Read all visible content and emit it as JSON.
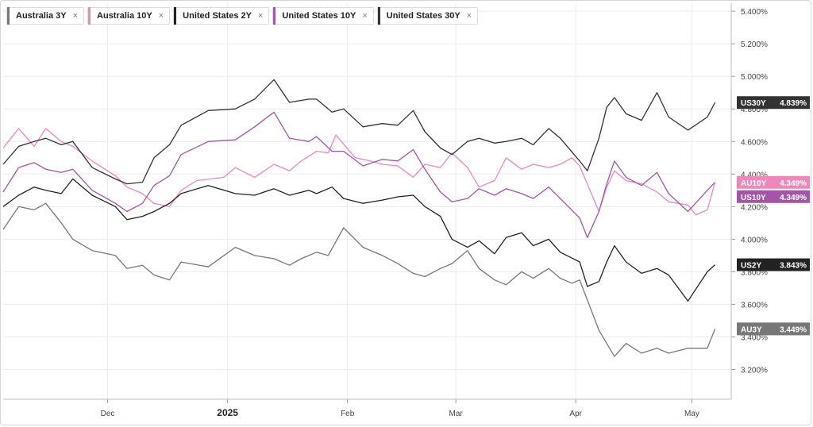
{
  "chart_data": {
    "type": "line",
    "x_ticks": [
      "Dec",
      "2025",
      "Feb",
      "Mar",
      "Apr",
      "May"
    ],
    "y_ticks": [
      "3.200%",
      "3.400%",
      "3.600%",
      "3.800%",
      "4.000%",
      "4.200%",
      "4.400%",
      "4.600%",
      "4.800%",
      "5.000%",
      "5.200%",
      "5.400%"
    ],
    "ylim": [
      3.1,
      5.43
    ],
    "x_range": [
      "2024-11-04",
      "2025-05-12"
    ],
    "grid": true,
    "legend_position": "top-left",
    "series": [
      {
        "name": "Australia 3Y",
        "tag": "AU3Y",
        "last_label": "3.449%",
        "last_value": 3.449,
        "color": "#777777",
        "points": [
          [
            "2024-11-04",
            4.06
          ],
          [
            "2024-11-08",
            4.2
          ],
          [
            "2024-11-12",
            4.18
          ],
          [
            "2024-11-15",
            4.22
          ],
          [
            "2024-11-19",
            4.1
          ],
          [
            "2024-11-22",
            4.0
          ],
          [
            "2024-11-27",
            3.93
          ],
          [
            "2024-12-03",
            3.9
          ],
          [
            "2024-12-06",
            3.82
          ],
          [
            "2024-12-10",
            3.84
          ],
          [
            "2024-12-13",
            3.78
          ],
          [
            "2024-12-17",
            3.75
          ],
          [
            "2024-12-20",
            3.86
          ],
          [
            "2024-12-27",
            3.83
          ],
          [
            "2025-01-03",
            3.95
          ],
          [
            "2025-01-08",
            3.9
          ],
          [
            "2025-01-13",
            3.88
          ],
          [
            "2025-01-17",
            3.84
          ],
          [
            "2025-01-20",
            3.88
          ],
          [
            "2025-01-24",
            3.92
          ],
          [
            "2025-01-27",
            3.9
          ],
          [
            "2025-01-31",
            4.07
          ],
          [
            "2025-02-05",
            3.95
          ],
          [
            "2025-02-10",
            3.9
          ],
          [
            "2025-02-14",
            3.85
          ],
          [
            "2025-02-18",
            3.79
          ],
          [
            "2025-02-21",
            3.77
          ],
          [
            "2025-02-25",
            3.82
          ],
          [
            "2025-02-28",
            3.85
          ],
          [
            "2025-03-04",
            3.93
          ],
          [
            "2025-03-07",
            3.82
          ],
          [
            "2025-03-11",
            3.75
          ],
          [
            "2025-03-14",
            3.72
          ],
          [
            "2025-03-18",
            3.8
          ],
          [
            "2025-03-21",
            3.76
          ],
          [
            "2025-03-25",
            3.82
          ],
          [
            "2025-03-28",
            3.76
          ],
          [
            "2025-03-31",
            3.73
          ],
          [
            "2025-04-02",
            3.75
          ],
          [
            "2025-04-07",
            3.44
          ],
          [
            "2025-04-11",
            3.28
          ],
          [
            "2025-04-14",
            3.36
          ],
          [
            "2025-04-18",
            3.3
          ],
          [
            "2025-04-22",
            3.33
          ],
          [
            "2025-04-25",
            3.3
          ],
          [
            "2025-04-30",
            3.33
          ],
          [
            "2025-05-05",
            3.33
          ],
          [
            "2025-05-07",
            3.449
          ]
        ]
      },
      {
        "name": "Australia 10Y",
        "tag": "AU10Y",
        "last_label": "4.349%",
        "last_value": 4.349,
        "color": "#ee88bb",
        "points": [
          [
            "2024-11-04",
            4.56
          ],
          [
            "2024-11-06",
            4.62
          ],
          [
            "2024-11-08",
            4.68
          ],
          [
            "2024-11-12",
            4.57
          ],
          [
            "2024-11-15",
            4.68
          ],
          [
            "2024-11-19",
            4.6
          ],
          [
            "2024-11-22",
            4.57
          ],
          [
            "2024-11-27",
            4.48
          ],
          [
            "2024-12-03",
            4.39
          ],
          [
            "2024-12-06",
            4.32
          ],
          [
            "2024-12-10",
            4.28
          ],
          [
            "2024-12-13",
            4.22
          ],
          [
            "2024-12-17",
            4.2
          ],
          [
            "2024-12-20",
            4.3
          ],
          [
            "2024-12-24",
            4.36
          ],
          [
            "2024-12-31",
            4.38
          ],
          [
            "2025-01-03",
            4.44
          ],
          [
            "2025-01-08",
            4.38
          ],
          [
            "2025-01-13",
            4.46
          ],
          [
            "2025-01-17",
            4.42
          ],
          [
            "2025-01-20",
            4.48
          ],
          [
            "2025-01-24",
            4.54
          ],
          [
            "2025-01-27",
            4.53
          ],
          [
            "2025-01-29",
            4.64
          ],
          [
            "2025-02-03",
            4.5
          ],
          [
            "2025-02-07",
            4.48
          ],
          [
            "2025-02-10",
            4.46
          ],
          [
            "2025-02-14",
            4.45
          ],
          [
            "2025-02-18",
            4.38
          ],
          [
            "2025-02-21",
            4.46
          ],
          [
            "2025-02-25",
            4.44
          ],
          [
            "2025-02-28",
            4.53
          ],
          [
            "2025-03-04",
            4.44
          ],
          [
            "2025-03-07",
            4.32
          ],
          [
            "2025-03-11",
            4.36
          ],
          [
            "2025-03-14",
            4.5
          ],
          [
            "2025-03-18",
            4.43
          ],
          [
            "2025-03-21",
            4.46
          ],
          [
            "2025-03-25",
            4.44
          ],
          [
            "2025-03-28",
            4.46
          ],
          [
            "2025-03-31",
            4.5
          ],
          [
            "2025-04-02",
            4.45
          ],
          [
            "2025-04-07",
            4.17
          ],
          [
            "2025-04-09",
            4.32
          ],
          [
            "2025-04-11",
            4.42
          ],
          [
            "2025-04-14",
            4.36
          ],
          [
            "2025-04-18",
            4.34
          ],
          [
            "2025-04-22",
            4.29
          ],
          [
            "2025-04-25",
            4.23
          ],
          [
            "2025-04-30",
            4.21
          ],
          [
            "2025-05-02",
            4.15
          ],
          [
            "2025-05-05",
            4.18
          ],
          [
            "2025-05-07",
            4.349
          ]
        ]
      },
      {
        "name": "United States 2Y",
        "tag": "US2Y",
        "last_label": "3.843%",
        "last_value": 3.843,
        "color": "#222222",
        "points": [
          [
            "2024-11-04",
            4.2
          ],
          [
            "2024-11-08",
            4.27
          ],
          [
            "2024-11-12",
            4.32
          ],
          [
            "2024-11-15",
            4.3
          ],
          [
            "2024-11-19",
            4.28
          ],
          [
            "2024-11-22",
            4.37
          ],
          [
            "2024-11-27",
            4.27
          ],
          [
            "2024-12-03",
            4.2
          ],
          [
            "2024-12-06",
            4.12
          ],
          [
            "2024-12-10",
            4.14
          ],
          [
            "2024-12-13",
            4.17
          ],
          [
            "2024-12-17",
            4.22
          ],
          [
            "2024-12-20",
            4.28
          ],
          [
            "2024-12-27",
            4.33
          ],
          [
            "2025-01-03",
            4.28
          ],
          [
            "2025-01-08",
            4.27
          ],
          [
            "2025-01-13",
            4.31
          ],
          [
            "2025-01-17",
            4.27
          ],
          [
            "2025-01-22",
            4.3
          ],
          [
            "2025-01-24",
            4.28
          ],
          [
            "2025-01-28",
            4.32
          ],
          [
            "2025-01-31",
            4.25
          ],
          [
            "2025-02-05",
            4.22
          ],
          [
            "2025-02-10",
            4.24
          ],
          [
            "2025-02-14",
            4.26
          ],
          [
            "2025-02-18",
            4.27
          ],
          [
            "2025-02-21",
            4.2
          ],
          [
            "2025-02-25",
            4.14
          ],
          [
            "2025-02-28",
            4.0
          ],
          [
            "2025-03-04",
            3.95
          ],
          [
            "2025-03-07",
            3.99
          ],
          [
            "2025-03-11",
            3.91
          ],
          [
            "2025-03-14",
            4.01
          ],
          [
            "2025-03-18",
            4.04
          ],
          [
            "2025-03-21",
            3.96
          ],
          [
            "2025-03-25",
            4.0
          ],
          [
            "2025-03-28",
            3.92
          ],
          [
            "2025-04-02",
            3.86
          ],
          [
            "2025-04-04",
            3.71
          ],
          [
            "2025-04-07",
            3.74
          ],
          [
            "2025-04-09",
            3.86
          ],
          [
            "2025-04-11",
            3.96
          ],
          [
            "2025-04-14",
            3.86
          ],
          [
            "2025-04-18",
            3.79
          ],
          [
            "2025-04-22",
            3.82
          ],
          [
            "2025-04-25",
            3.78
          ],
          [
            "2025-04-30",
            3.62
          ],
          [
            "2025-05-05",
            3.8
          ],
          [
            "2025-05-07",
            3.843
          ]
        ]
      },
      {
        "name": "United States 10Y",
        "tag": "US10Y",
        "last_label": "4.349%",
        "last_value": 4.349,
        "color": "#a355a8",
        "points": [
          [
            "2024-11-04",
            4.29
          ],
          [
            "2024-11-08",
            4.44
          ],
          [
            "2024-11-12",
            4.47
          ],
          [
            "2024-11-15",
            4.43
          ],
          [
            "2024-11-19",
            4.41
          ],
          [
            "2024-11-22",
            4.43
          ],
          [
            "2024-11-27",
            4.3
          ],
          [
            "2024-12-03",
            4.22
          ],
          [
            "2024-12-06",
            4.17
          ],
          [
            "2024-12-10",
            4.22
          ],
          [
            "2024-12-13",
            4.33
          ],
          [
            "2024-12-17",
            4.39
          ],
          [
            "2024-12-20",
            4.52
          ],
          [
            "2024-12-27",
            4.6
          ],
          [
            "2025-01-03",
            4.61
          ],
          [
            "2025-01-08",
            4.69
          ],
          [
            "2025-01-13",
            4.78
          ],
          [
            "2025-01-17",
            4.62
          ],
          [
            "2025-01-22",
            4.6
          ],
          [
            "2025-01-24",
            4.63
          ],
          [
            "2025-01-28",
            4.54
          ],
          [
            "2025-01-31",
            4.54
          ],
          [
            "2025-02-05",
            4.45
          ],
          [
            "2025-02-10",
            4.49
          ],
          [
            "2025-02-14",
            4.48
          ],
          [
            "2025-02-18",
            4.55
          ],
          [
            "2025-02-21",
            4.43
          ],
          [
            "2025-02-25",
            4.29
          ],
          [
            "2025-02-28",
            4.23
          ],
          [
            "2025-03-04",
            4.25
          ],
          [
            "2025-03-07",
            4.31
          ],
          [
            "2025-03-11",
            4.27
          ],
          [
            "2025-03-14",
            4.31
          ],
          [
            "2025-03-18",
            4.28
          ],
          [
            "2025-03-21",
            4.25
          ],
          [
            "2025-03-25",
            4.32
          ],
          [
            "2025-03-28",
            4.25
          ],
          [
            "2025-04-02",
            4.13
          ],
          [
            "2025-04-04",
            4.01
          ],
          [
            "2025-04-07",
            4.17
          ],
          [
            "2025-04-09",
            4.34
          ],
          [
            "2025-04-11",
            4.48
          ],
          [
            "2025-04-14",
            4.38
          ],
          [
            "2025-04-18",
            4.33
          ],
          [
            "2025-04-22",
            4.41
          ],
          [
            "2025-04-25",
            4.28
          ],
          [
            "2025-04-30",
            4.17
          ],
          [
            "2025-05-05",
            4.3
          ],
          [
            "2025-05-07",
            4.349
          ]
        ]
      },
      {
        "name": "United States 30Y",
        "tag": "US30Y",
        "last_label": "4.839%",
        "last_value": 4.839,
        "color": "#333333",
        "points": [
          [
            "2024-11-04",
            4.46
          ],
          [
            "2024-11-08",
            4.57
          ],
          [
            "2024-11-12",
            4.6
          ],
          [
            "2024-11-15",
            4.62
          ],
          [
            "2024-11-19",
            4.58
          ],
          [
            "2024-11-22",
            4.6
          ],
          [
            "2024-11-27",
            4.44
          ],
          [
            "2024-12-03",
            4.37
          ],
          [
            "2024-12-06",
            4.34
          ],
          [
            "2024-12-10",
            4.35
          ],
          [
            "2024-12-13",
            4.5
          ],
          [
            "2024-12-17",
            4.58
          ],
          [
            "2024-12-20",
            4.7
          ],
          [
            "2024-12-27",
            4.79
          ],
          [
            "2025-01-03",
            4.8
          ],
          [
            "2025-01-08",
            4.86
          ],
          [
            "2025-01-13",
            4.98
          ],
          [
            "2025-01-17",
            4.84
          ],
          [
            "2025-01-22",
            4.86
          ],
          [
            "2025-01-24",
            4.86
          ],
          [
            "2025-01-28",
            4.78
          ],
          [
            "2025-01-31",
            4.8
          ],
          [
            "2025-02-05",
            4.69
          ],
          [
            "2025-02-10",
            4.71
          ],
          [
            "2025-02-14",
            4.7
          ],
          [
            "2025-02-18",
            4.79
          ],
          [
            "2025-02-21",
            4.66
          ],
          [
            "2025-02-25",
            4.56
          ],
          [
            "2025-02-28",
            4.52
          ],
          [
            "2025-03-04",
            4.6
          ],
          [
            "2025-03-07",
            4.62
          ],
          [
            "2025-03-11",
            4.59
          ],
          [
            "2025-03-14",
            4.6
          ],
          [
            "2025-03-18",
            4.62
          ],
          [
            "2025-03-21",
            4.58
          ],
          [
            "2025-03-25",
            4.68
          ],
          [
            "2025-03-28",
            4.62
          ],
          [
            "2025-04-02",
            4.48
          ],
          [
            "2025-04-04",
            4.42
          ],
          [
            "2025-04-07",
            4.62
          ],
          [
            "2025-04-09",
            4.81
          ],
          [
            "2025-04-11",
            4.87
          ],
          [
            "2025-04-14",
            4.77
          ],
          [
            "2025-04-18",
            4.73
          ],
          [
            "2025-04-22",
            4.9
          ],
          [
            "2025-04-25",
            4.75
          ],
          [
            "2025-04-30",
            4.67
          ],
          [
            "2025-05-05",
            4.75
          ],
          [
            "2025-05-07",
            4.839
          ]
        ]
      }
    ]
  }
}
